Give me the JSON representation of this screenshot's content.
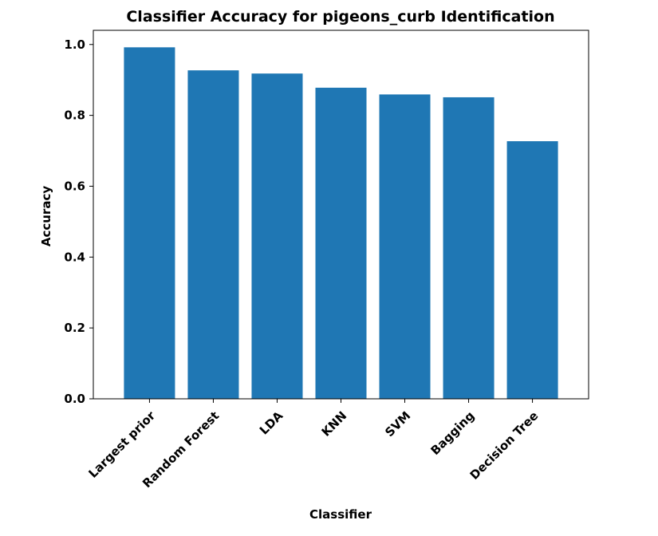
{
  "chart_data": {
    "type": "bar",
    "title": "Classifier Accuracy for pigeons_curb Identification",
    "xlabel": "Classifier",
    "ylabel": "Accuracy",
    "categories": [
      "Largest prior",
      "Random Forest",
      "LDA",
      "KNN",
      "SVM",
      "Bagging",
      "Decision Tree"
    ],
    "values": [
      0.992,
      0.927,
      0.918,
      0.878,
      0.859,
      0.851,
      0.727
    ],
    "ylim": [
      0,
      1.04
    ],
    "yticks": [
      0.0,
      0.2,
      0.4,
      0.6,
      0.8,
      1.0
    ],
    "ytick_labels": [
      "0.0",
      "0.2",
      "0.4",
      "0.6",
      "0.8",
      "1.0"
    ],
    "grid": false,
    "bar_color": "#1f77b4"
  }
}
